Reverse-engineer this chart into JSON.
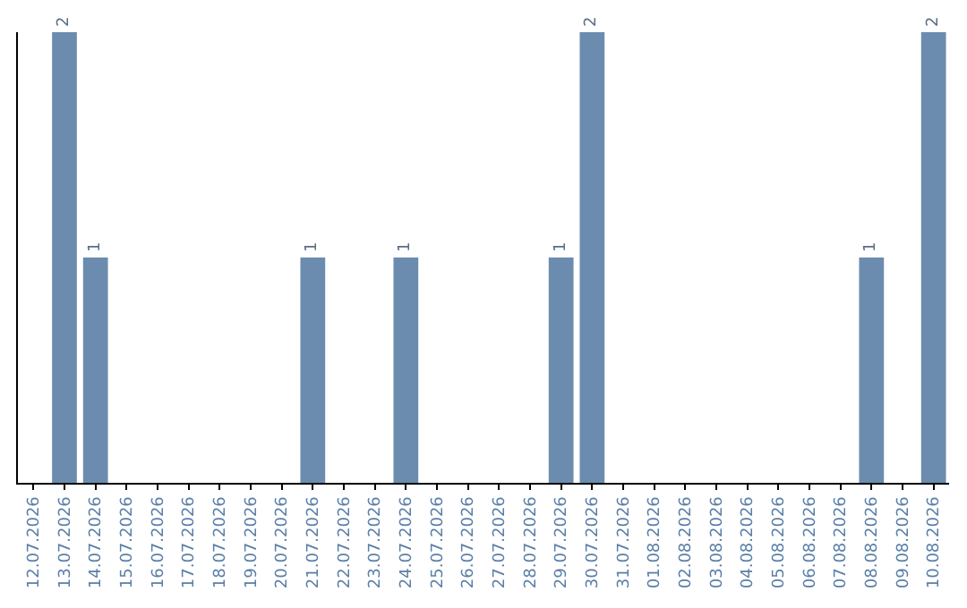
{
  "chart_data": {
    "type": "bar",
    "categories": [
      "12.07.2026",
      "13.07.2026",
      "14.07.2026",
      "15.07.2026",
      "16.07.2026",
      "17.07.2026",
      "18.07.2026",
      "19.07.2026",
      "20.07.2026",
      "21.07.2026",
      "22.07.2026",
      "23.07.2026",
      "24.07.2026",
      "25.07.2026",
      "26.07.2026",
      "27.07.2026",
      "28.07.2026",
      "29.07.2026",
      "30.07.2026",
      "31.07.2026",
      "01.08.2026",
      "02.08.2026",
      "03.08.2026",
      "04.08.2026",
      "05.08.2026",
      "06.08.2026",
      "07.08.2026",
      "08.08.2026",
      "09.08.2026",
      "10.08.2026"
    ],
    "values": [
      0,
      2,
      1,
      0,
      0,
      0,
      0,
      0,
      0,
      1,
      0,
      0,
      1,
      0,
      0,
      0,
      0,
      1,
      2,
      0,
      0,
      0,
      0,
      0,
      0,
      0,
      0,
      1,
      0,
      2
    ],
    "value_labels": [
      null,
      "2",
      "1",
      null,
      null,
      null,
      null,
      null,
      null,
      "1",
      null,
      null,
      "1",
      null,
      null,
      null,
      null,
      "1",
      "2",
      null,
      null,
      null,
      null,
      null,
      null,
      null,
      null,
      "1",
      null,
      "2"
    ],
    "color": "#6b8cae",
    "legend": false,
    "tick_labels": "x"
  }
}
